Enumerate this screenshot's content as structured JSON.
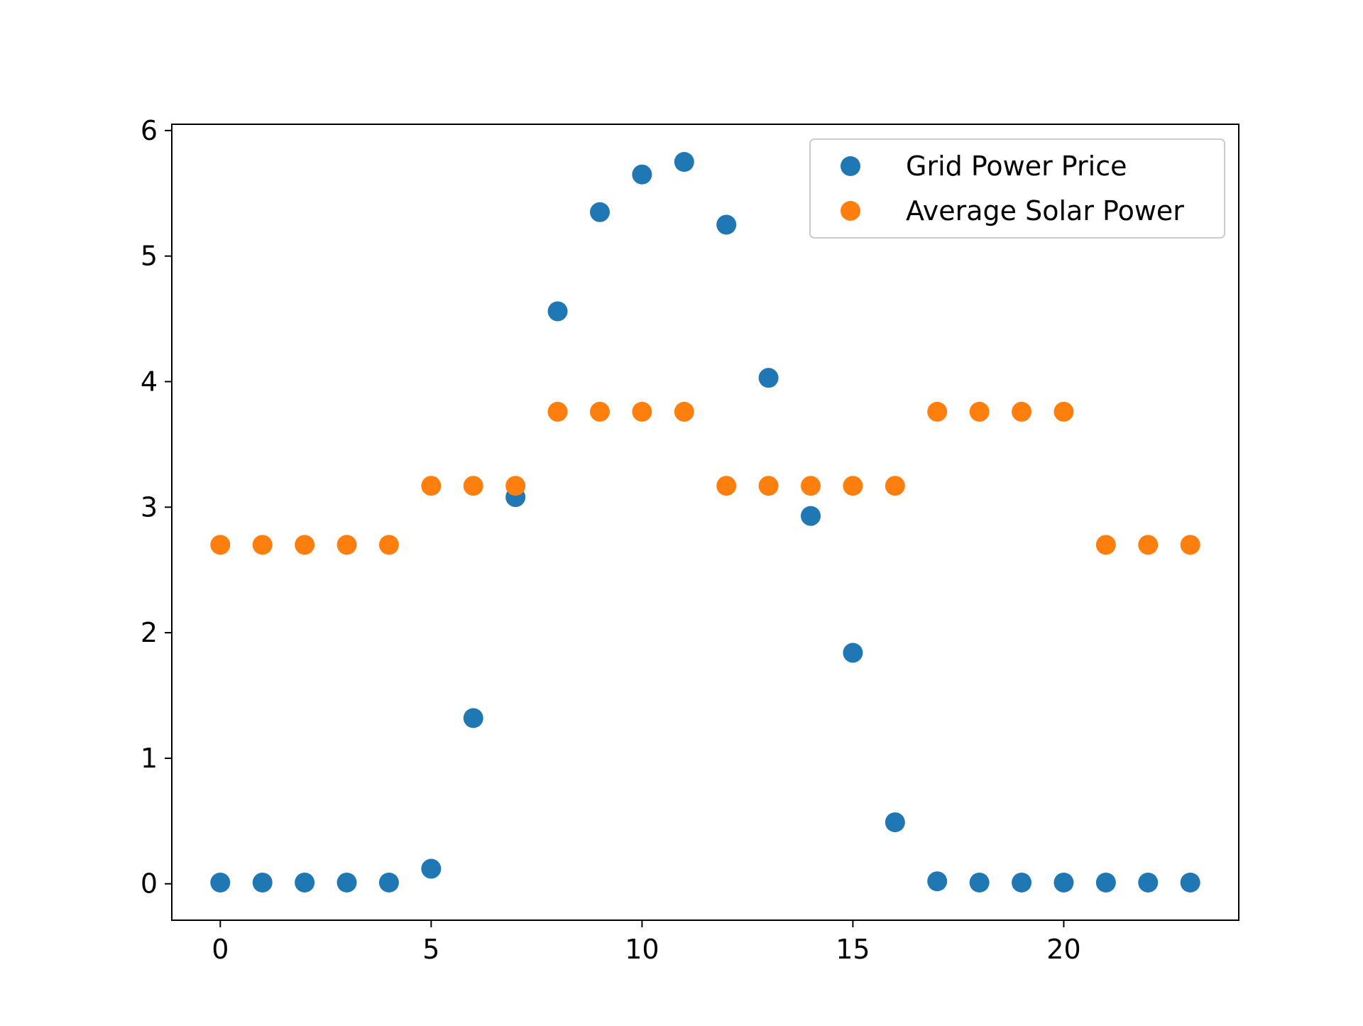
{
  "chart_data": {
    "type": "scatter",
    "title": "",
    "xlabel": "",
    "ylabel": "",
    "xlim": [
      -1.15,
      24.15
    ],
    "ylim": [
      -0.29,
      6.05
    ],
    "xticks": [
      0,
      5,
      10,
      15,
      20
    ],
    "yticks": [
      0,
      1,
      2,
      3,
      4,
      5,
      6
    ],
    "grid": false,
    "legend_position": "top-right",
    "series": [
      {
        "name": "Grid Power Price",
        "color": "#1f77b4",
        "x": [
          0,
          1,
          2,
          3,
          4,
          5,
          6,
          7,
          8,
          9,
          10,
          11,
          12,
          13,
          14,
          15,
          16,
          17,
          18,
          19,
          20,
          21,
          22,
          23
        ],
        "y": [
          0.01,
          0.01,
          0.01,
          0.01,
          0.01,
          0.12,
          1.32,
          3.08,
          4.56,
          5.35,
          5.65,
          5.75,
          5.25,
          4.03,
          2.93,
          1.84,
          0.49,
          0.02,
          0.01,
          0.01,
          0.01,
          0.01,
          0.01,
          0.01
        ]
      },
      {
        "name": "Average Solar Power",
        "color": "#ff7f0e",
        "x": [
          0,
          1,
          2,
          3,
          4,
          5,
          6,
          7,
          8,
          9,
          10,
          11,
          12,
          13,
          14,
          15,
          16,
          17,
          18,
          19,
          20,
          21,
          22,
          23
        ],
        "y": [
          2.7,
          2.7,
          2.7,
          2.7,
          2.7,
          3.17,
          3.17,
          3.17,
          3.76,
          3.76,
          3.76,
          3.76,
          3.17,
          3.17,
          3.17,
          3.17,
          3.17,
          3.76,
          3.76,
          3.76,
          3.76,
          2.7,
          2.7,
          2.7
        ]
      }
    ]
  }
}
